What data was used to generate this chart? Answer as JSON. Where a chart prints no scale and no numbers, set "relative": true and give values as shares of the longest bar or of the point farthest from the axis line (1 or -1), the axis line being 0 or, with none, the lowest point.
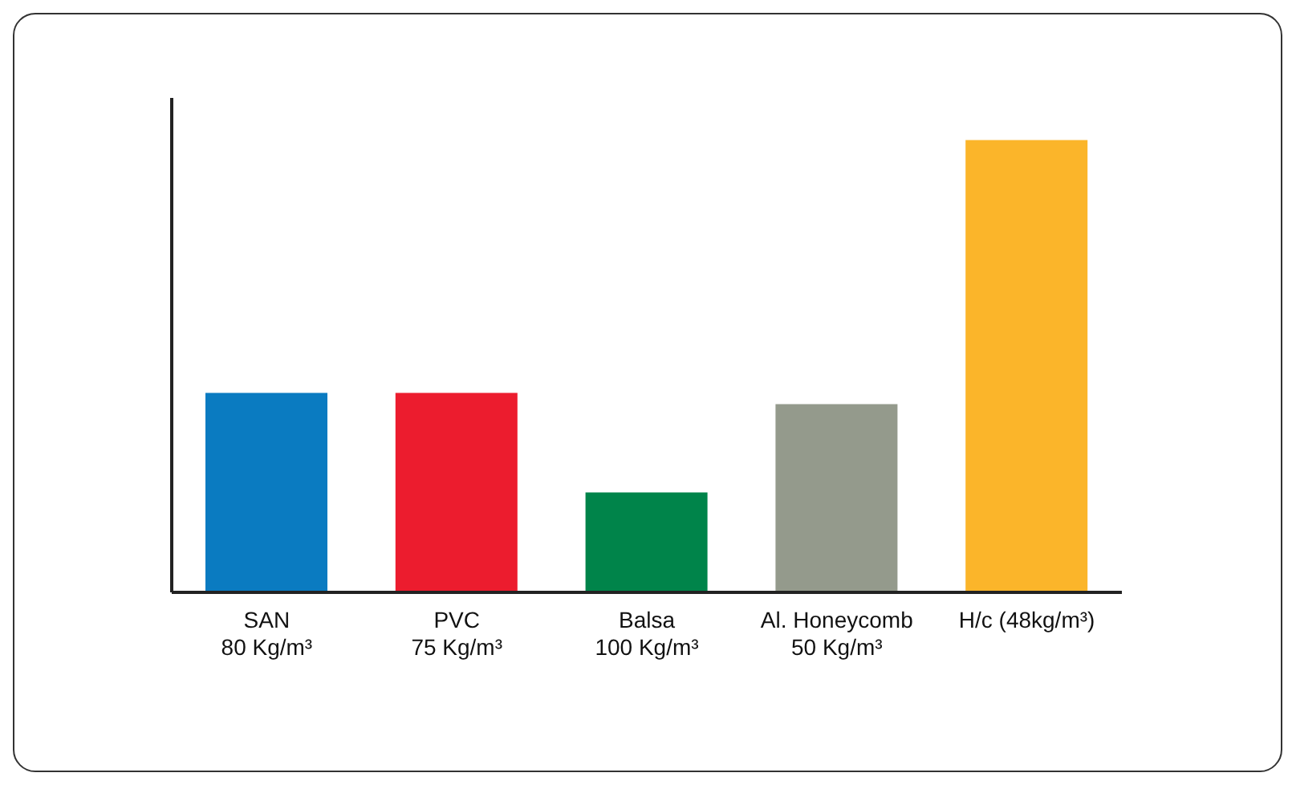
{
  "chart_data": {
    "type": "bar",
    "categories": [
      "SAN\n80 Kg/m³",
      "PVC\n75 Kg/m³",
      "Balsa\n100 Kg/m³",
      "Al. Honeycomb\n50 Kg/m³",
      "H/c (48kg/m³)"
    ],
    "values": [
      0.441,
      0.441,
      0.221,
      0.416,
      1
    ],
    "colors": [
      "#0a7bc1",
      "#ec1c2e",
      "#00844a",
      "#949a8c",
      "#fbb52a"
    ],
    "relative": true,
    "grid": false,
    "legend": false
  }
}
